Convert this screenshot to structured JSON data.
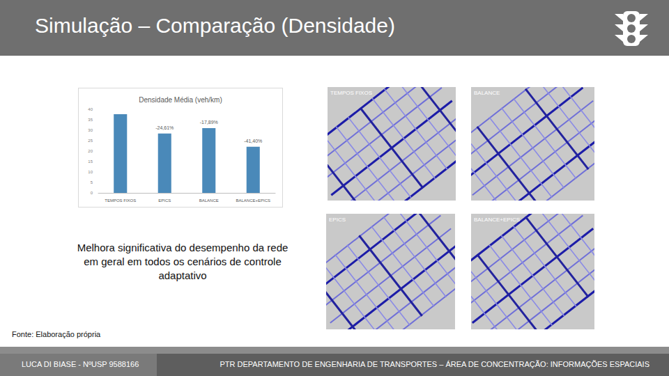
{
  "header": {
    "title": "Simulação – Comparação (Densidade)"
  },
  "chart_data": {
    "type": "bar",
    "title": "Densidade Média (veh/km)",
    "categories": [
      "TEMPOS FIXOS",
      "EPICS",
      "BALANCE",
      "BALANCE+EPICS"
    ],
    "values": [
      37.7,
      28.4,
      31.0,
      22.1
    ],
    "annotations": [
      null,
      "-24,61%",
      "-17,89%",
      "-41,40%"
    ],
    "color": "#4a89b9",
    "ylim": [
      0,
      40
    ],
    "yticks": [
      0,
      5,
      10,
      15,
      20,
      25,
      30,
      35,
      40
    ],
    "grid": false
  },
  "maps": [
    {
      "title": "TEMPOS FIXOS"
    },
    {
      "title": "BALANCE"
    },
    {
      "title": "EPICS"
    },
    {
      "title": "BALANCE+EPICS"
    }
  ],
  "caption": "Melhora significativa do desempenho da rede em geral em todos os cenários de controle adaptativo",
  "source": "Fonte: Elaboração própria",
  "footer": {
    "left": "LUCA DI BIASE - NºUSP 9588166",
    "right": "PTR DEPARTAMENTO DE ENGENHARIA DE TRANSPORTES – ÁREA DE CONCENTRAÇÃO: INFORMAÇÕES ESPACIAIS"
  }
}
